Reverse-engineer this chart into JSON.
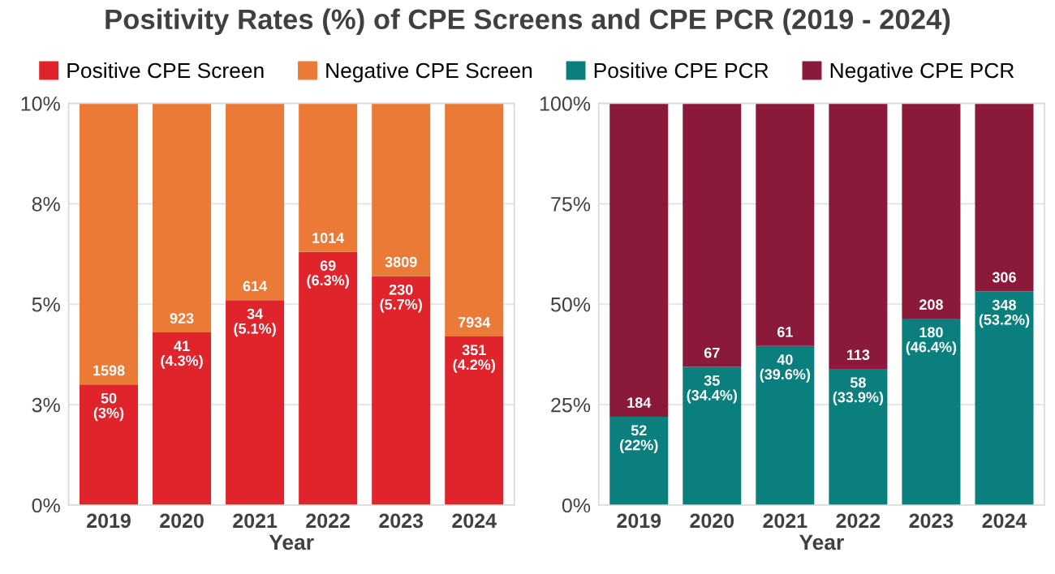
{
  "chart_data": [
    {
      "type": "bar",
      "title": "Positivity Rates (%) of CPE Screens and CPE PCR (2019 - 2024)",
      "xlabel": "Year",
      "stacked": true,
      "legend": "top",
      "grid": "y",
      "categories": [
        "2019",
        "2020",
        "2021",
        "2022",
        "2023",
        "2024"
      ],
      "ylim": [
        0,
        10
      ],
      "yticks": [
        {
          "value": 0,
          "label": "0%"
        },
        {
          "value": 2.5,
          "label": "3%"
        },
        {
          "value": 5,
          "label": "5%"
        },
        {
          "value": 7.5,
          "label": "8%"
        },
        {
          "value": 10,
          "label": "10%"
        }
      ],
      "series": [
        {
          "name": "Positive CPE Screen",
          "color": "#e0242c",
          "values": [
            3.0,
            4.3,
            5.1,
            6.3,
            5.7,
            4.2
          ],
          "value_labels": [
            "50\n(3%)",
            "41\n(4.3%)",
            "34\n(5.1%)",
            "69\n(6.3%)",
            "230\n(5.7%)",
            "351\n(4.2%)"
          ]
        },
        {
          "name": "Negative CPE Screen",
          "color": "#ea7a35",
          "values": [
            7.0,
            5.7,
            4.9,
            3.7,
            4.3,
            5.8
          ]
        }
      ],
      "annotations": [
        {
          "text": "1598",
          "x": "2019",
          "y": 3.0
        },
        {
          "text": "923",
          "x": "2020",
          "y": 4.3
        },
        {
          "text": "614",
          "x": "2021",
          "y": 5.1
        },
        {
          "text": "1014",
          "x": "2022",
          "y": 6.3
        },
        {
          "text": "3809",
          "x": "2023",
          "y": 5.7
        },
        {
          "text": "7934",
          "x": "2024",
          "y": 4.2
        }
      ]
    },
    {
      "type": "bar",
      "xlabel": "Year",
      "stacked": true,
      "legend": "top",
      "grid": "y",
      "categories": [
        "2019",
        "2020",
        "2021",
        "2022",
        "2023",
        "2024"
      ],
      "ylim": [
        0,
        100
      ],
      "yticks": [
        {
          "value": 0,
          "label": "0%"
        },
        {
          "value": 25,
          "label": "25%"
        },
        {
          "value": 50,
          "label": "50%"
        },
        {
          "value": 75,
          "label": "75%"
        },
        {
          "value": 100,
          "label": "100%"
        }
      ],
      "series": [
        {
          "name": "Positive CPE PCR",
          "color": "#0a7f7d",
          "values": [
            22,
            34.4,
            39.6,
            33.9,
            46.4,
            53.2
          ],
          "value_labels": [
            "52\n(22%)",
            "35\n(34.4%)",
            "40\n(39.6%)",
            "58\n(33.9%)",
            "180\n(46.4%)",
            "348\n(53.2%)"
          ]
        },
        {
          "name": "Negative CPE PCR",
          "color": "#8b1a3a",
          "values": [
            78,
            65.6,
            60.4,
            66.1,
            53.6,
            46.8
          ]
        }
      ],
      "annotations": [
        {
          "text": "184",
          "x": "2019",
          "y": 22
        },
        {
          "text": "67",
          "x": "2020",
          "y": 34.4
        },
        {
          "text": "61",
          "x": "2021",
          "y": 39.6
        },
        {
          "text": "113",
          "x": "2022",
          "y": 33.9
        },
        {
          "text": "208",
          "x": "2023",
          "y": 46.4
        },
        {
          "text": "306",
          "x": "2024",
          "y": 53.2
        }
      ]
    }
  ]
}
